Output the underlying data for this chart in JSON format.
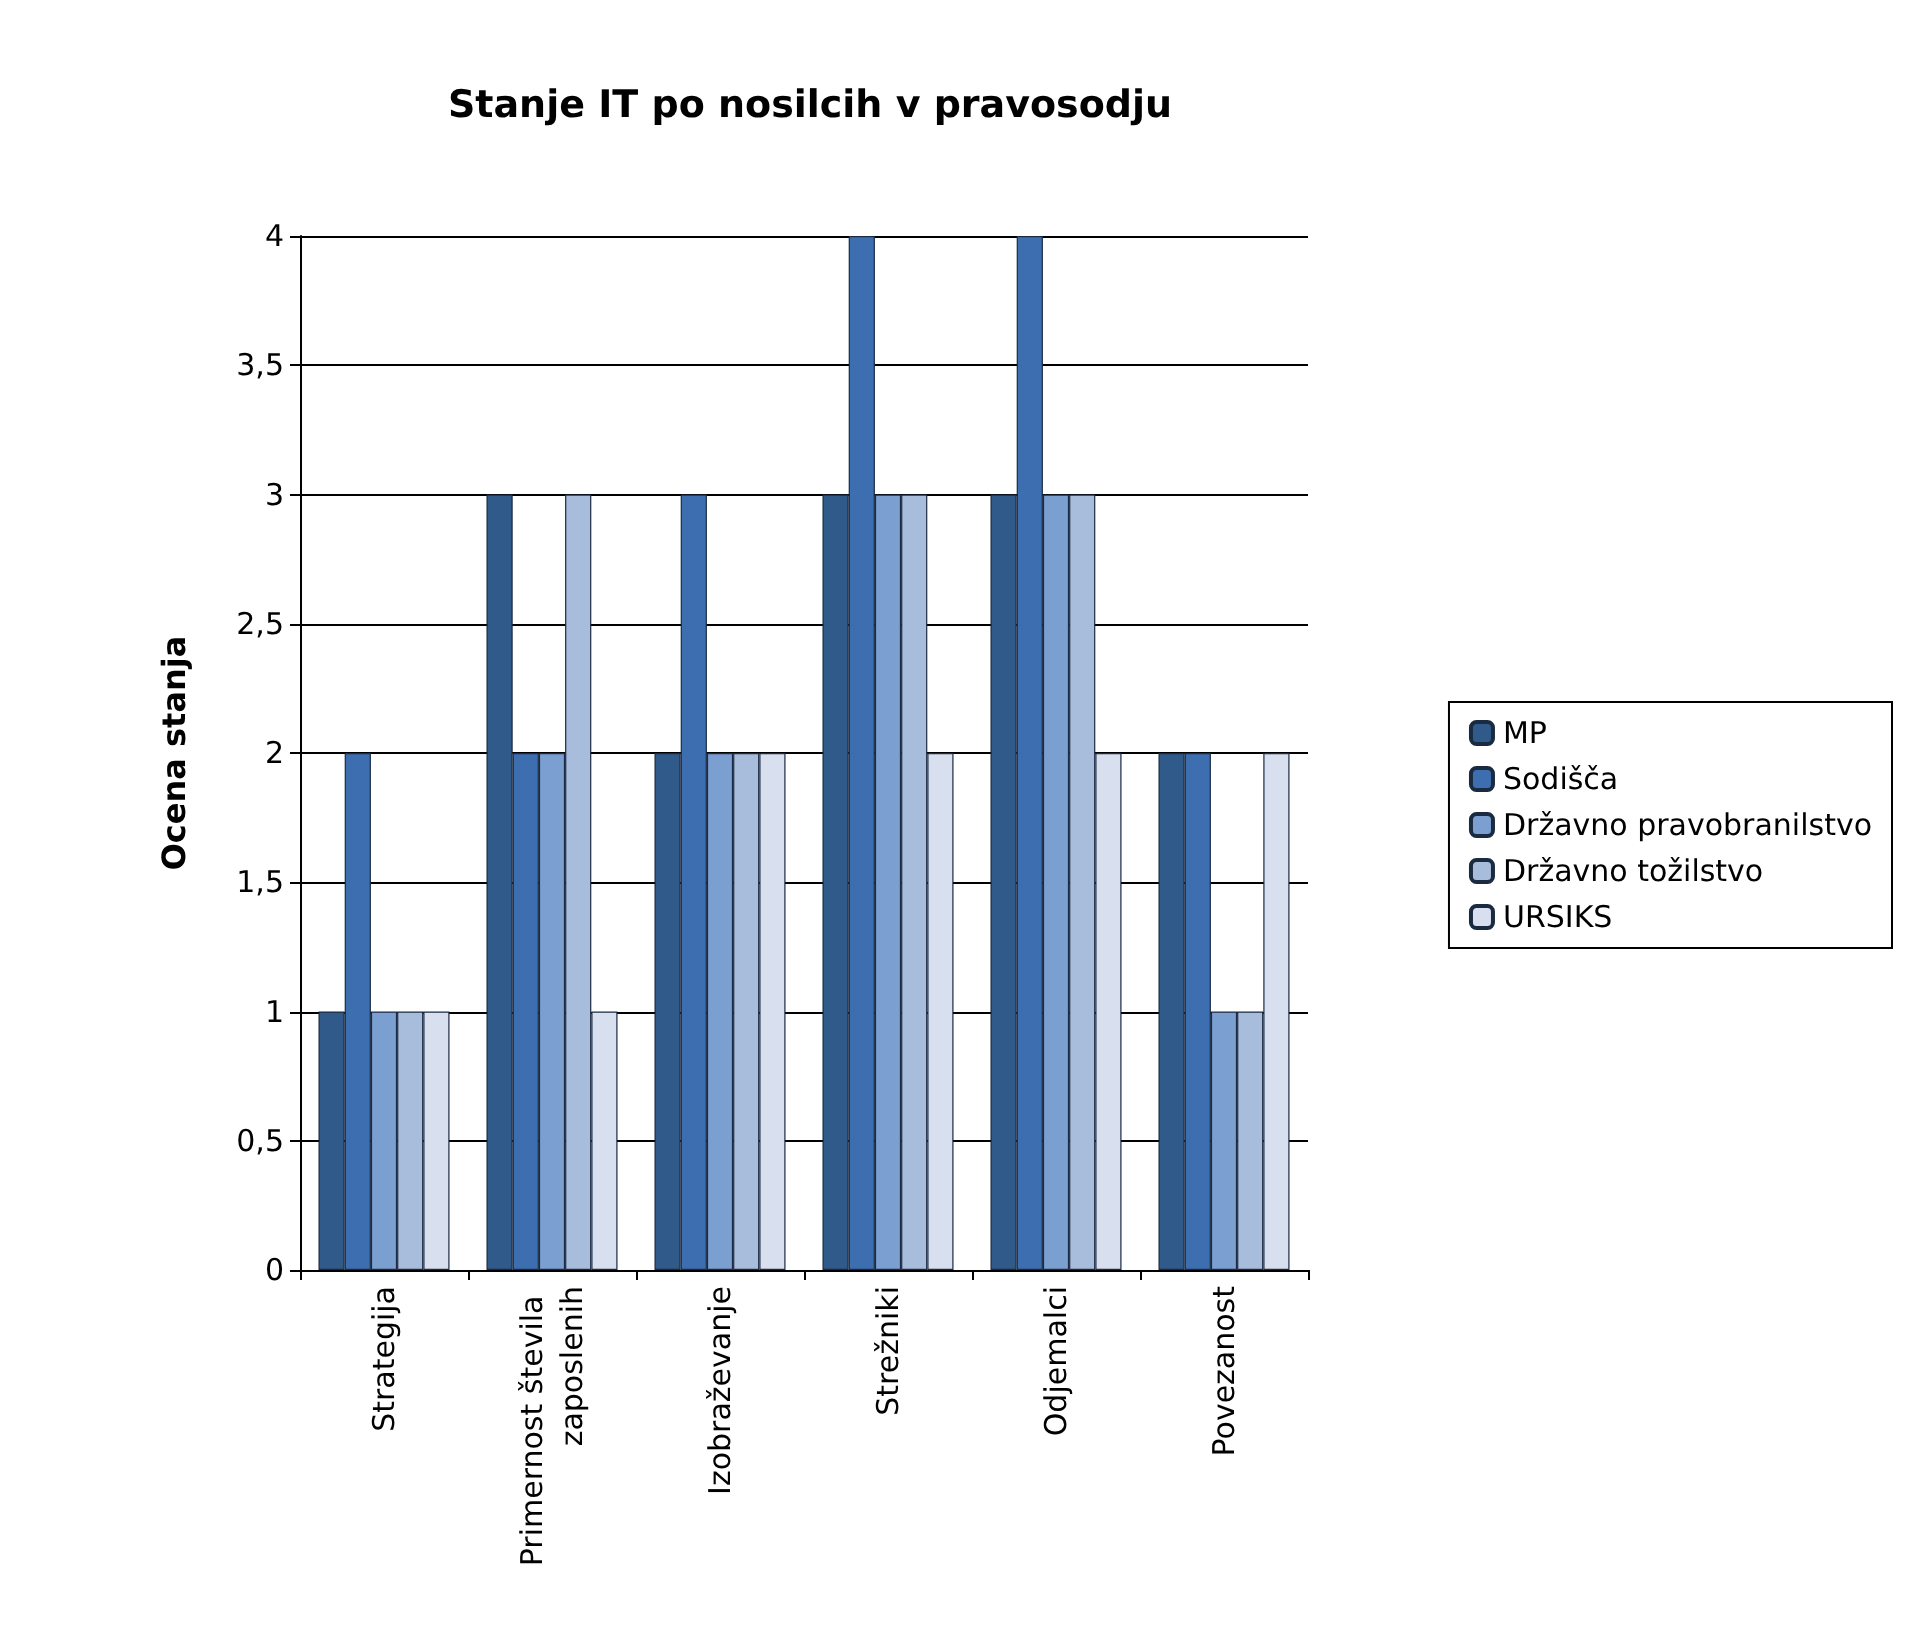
{
  "chart_data": {
    "type": "bar",
    "title": "Stanje IT po nosilcih v pravosodju",
    "ylabel": "Ocena stanja",
    "categories": [
      "Strategija",
      "Primernost števila zaposlenih",
      "Izobraževanje",
      "Strežniki",
      "Odjemalci",
      "Povezanost"
    ],
    "series": [
      {
        "name": "MP",
        "color": "#2f5a8a",
        "values": [
          1,
          3,
          2,
          3,
          3,
          2
        ]
      },
      {
        "name": "Sodišča",
        "color": "#3d6fb0",
        "values": [
          2,
          2,
          3,
          4,
          4,
          2
        ]
      },
      {
        "name": "Državno pravobranilstvo",
        "color": "#7b9fd0",
        "values": [
          1,
          2,
          2,
          3,
          3,
          1
        ]
      },
      {
        "name": "Državno tožilstvo",
        "color": "#a8bcdc",
        "values": [
          1,
          3,
          2,
          3,
          3,
          1
        ]
      },
      {
        "name": "URSIKS",
        "color": "#d8e0f0",
        "values": [
          1,
          1,
          2,
          2,
          2,
          2
        ]
      }
    ],
    "ylim": [
      0,
      4
    ],
    "yticks": [
      0,
      {
        "value": 0.5,
        "label": "0,5"
      },
      1,
      {
        "value": 1.5,
        "label": "1,5"
      },
      2,
      {
        "value": 2.5,
        "label": "2,5"
      },
      3,
      {
        "value": 3.5,
        "label": "3,5"
      },
      4
    ],
    "grid": "y",
    "legend": "right"
  }
}
